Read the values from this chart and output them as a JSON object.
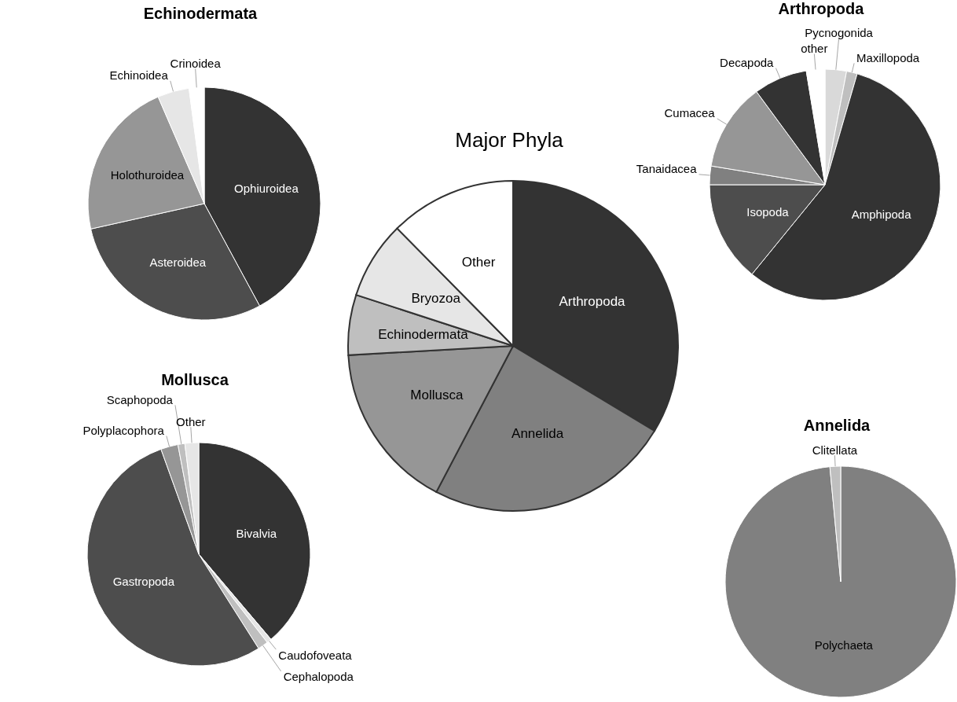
{
  "chart_data": [
    {
      "type": "pie",
      "title": "Echinodermata",
      "categories": [
        "Ophiuroidea",
        "Asteroidea",
        "Holothuroidea",
        "Echinoidea",
        "Crinoidea"
      ],
      "values": [
        42.1,
        29.4,
        22.0,
        4.4,
        2.1
      ],
      "colors": [
        "#333333",
        "#4d4d4d",
        "#969696",
        "#e6e6e6",
        "#ffffff"
      ],
      "legend": false
    },
    {
      "type": "pie",
      "title": "Arthropoda",
      "categories": [
        "Pycnogonida",
        "Maxillopoda",
        "Amphipoda",
        "Isopoda",
        "Tanaidacea",
        "Cumacea",
        "Decapoda",
        "other"
      ],
      "values": [
        3.0,
        1.5,
        56.4,
        14.1,
        2.6,
        12.3,
        7.5,
        2.6
      ],
      "colors": [
        "#d9d9d9",
        "#bfbfbf",
        "#333333",
        "#4d4d4d",
        "#808080",
        "#969696",
        "#333333",
        "#ffffff"
      ],
      "legend": false
    },
    {
      "type": "pie",
      "title": "Major Phyla",
      "categories": [
        "Arthropoda",
        "Annelida",
        "Mollusca",
        "Echinodermata",
        "Bryozoa",
        "Other"
      ],
      "values": [
        33.6,
        24.1,
        16.4,
        5.9,
        7.6,
        12.4
      ],
      "colors": [
        "#333333",
        "#808080",
        "#969696",
        "#bfbfbf",
        "#e6e6e6",
        "#ffffff"
      ],
      "legend": false
    },
    {
      "type": "pie",
      "title": "Mollusca",
      "categories": [
        "Bivalvia",
        "Caudofoveata",
        "Cephalopoda",
        "Gastropoda",
        "Polyplacophora",
        "Scaphopoda",
        "Other"
      ],
      "values": [
        38.8,
        0.7,
        1.5,
        53.5,
        2.5,
        1.0,
        2.0
      ],
      "colors": [
        "#333333",
        "#e6e6e6",
        "#bfbfbf",
        "#4d4d4d",
        "#969696",
        "#bfbfbf",
        "#e6e6e6"
      ],
      "legend": false
    },
    {
      "type": "pie",
      "title": "Annelida",
      "categories": [
        "Polychaeta",
        "Clitellata"
      ],
      "values": [
        98.5,
        1.5
      ],
      "colors": [
        "#808080",
        "#bfbfbf"
      ],
      "legend": false
    }
  ]
}
